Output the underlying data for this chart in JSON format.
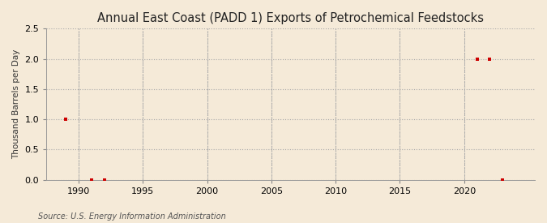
{
  "title": "Annual East Coast (PADD 1) Exports of Petrochemical Feedstocks",
  "ylabel": "Thousand Barrels per Day",
  "source": "Source: U.S. Energy Information Administration",
  "xlim": [
    1987.5,
    2025.5
  ],
  "ylim": [
    0.0,
    2.5
  ],
  "yticks": [
    0.0,
    0.5,
    1.0,
    1.5,
    2.0,
    2.5
  ],
  "xticks": [
    1990,
    1995,
    2000,
    2005,
    2010,
    2015,
    2020
  ],
  "data_x": [
    1989,
    1991,
    1992,
    2021,
    2022,
    2023
  ],
  "data_y": [
    1.0,
    0.0,
    0.0,
    2.0,
    2.0,
    0.0
  ],
  "marker_color": "#cc0000",
  "marker_size": 3.5,
  "background_color": "#f5ead8",
  "plot_bg_color": "#f5ead8",
  "grid_color": "#aaaaaa",
  "title_fontsize": 10.5,
  "label_fontsize": 7.5,
  "tick_fontsize": 8,
  "source_fontsize": 7
}
